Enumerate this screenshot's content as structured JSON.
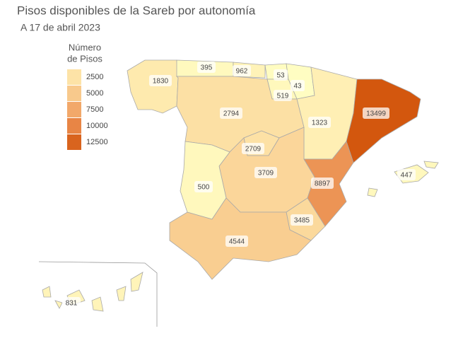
{
  "title": "Pisos disponibles de la Sareb por autonomía",
  "subtitle": "A 17 de abril 2023",
  "legend": {
    "title": [
      "Número",
      "de Pisos"
    ],
    "ticks": [
      2500,
      5000,
      7500,
      10000,
      12500
    ],
    "colors": [
      "#fde3a7",
      "#f8c98c",
      "#f2a86a",
      "#e88545",
      "#d9641e"
    ]
  },
  "regions": [
    {
      "value": 1830
    },
    {
      "value": 395
    },
    {
      "value": 962
    },
    {
      "value": 53
    },
    {
      "value": 43
    },
    {
      "value": 519
    },
    {
      "value": 1323
    },
    {
      "value": 13499
    },
    {
      "value": 2794
    },
    {
      "value": 2709
    },
    {
      "value": 3709
    },
    {
      "value": 500
    },
    {
      "value": 8897
    },
    {
      "value": 3485
    },
    {
      "value": 4544
    },
    {
      "value": 447
    },
    {
      "value": 831
    }
  ]
}
